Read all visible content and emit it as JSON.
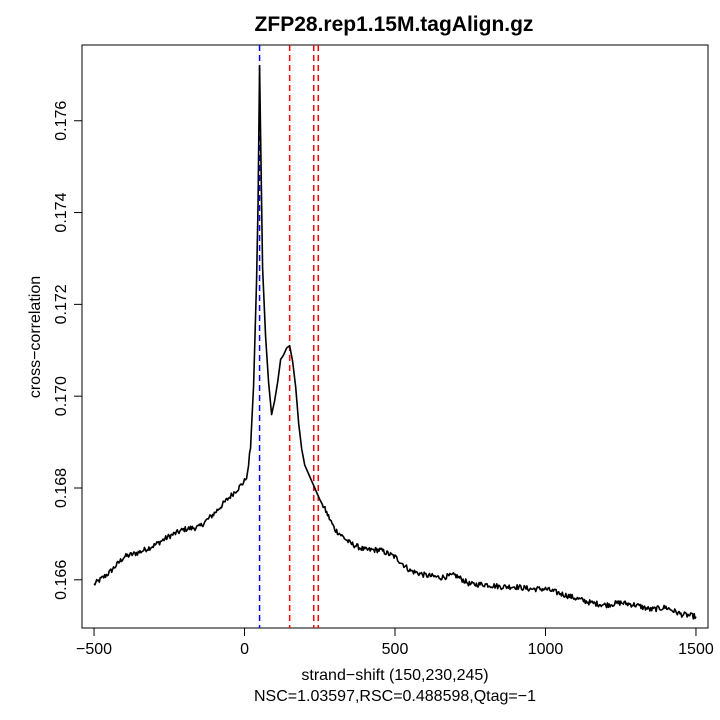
{
  "chart_data": {
    "type": "line",
    "title": "ZFP28.rep1.15M.tagAlign.gz",
    "xlabel": "strand−shift (150,230,245)",
    "subtitle": "NSC=1.03597,RSC=0.488598,Qtag=−1",
    "ylabel": "cross−correlation",
    "xlim": [
      -540,
      1540
    ],
    "ylim": [
      0.16495,
      0.17765
    ],
    "x_ticks": [
      -500,
      0,
      500,
      1000,
      1500
    ],
    "x_tick_labels": [
      "−500",
      "0",
      "500",
      "1000",
      "1500"
    ],
    "y_ticks": [
      0.166,
      0.168,
      0.17,
      0.172,
      0.174,
      0.176
    ],
    "y_tick_labels": [
      "0.166",
      "0.168",
      "0.170",
      "0.172",
      "0.174",
      "0.176"
    ],
    "series": [
      {
        "name": "cross-correlation",
        "color": "#000000",
        "x": [
          -500,
          -450,
          -400,
          -350,
          -300,
          -250,
          -200,
          -150,
          -100,
          -50,
          -20,
          0,
          10,
          20,
          30,
          40,
          45,
          50,
          55,
          60,
          70,
          80,
          90,
          100,
          110,
          120,
          130,
          140,
          150,
          160,
          170,
          180,
          190,
          200,
          210,
          220,
          230,
          240,
          250,
          270,
          300,
          350,
          400,
          450,
          500,
          550,
          600,
          650,
          700,
          750,
          800,
          850,
          900,
          950,
          1000,
          1050,
          1100,
          1150,
          1200,
          1250,
          1300,
          1350,
          1400,
          1450,
          1500
        ],
        "y": [
          0.1659,
          0.16615,
          0.1665,
          0.1666,
          0.16675,
          0.16695,
          0.1671,
          0.16715,
          0.16745,
          0.1678,
          0.168,
          0.16815,
          0.1683,
          0.1689,
          0.1702,
          0.1725,
          0.1742,
          0.1772,
          0.175,
          0.1728,
          0.1713,
          0.1703,
          0.1696,
          0.1699,
          0.1703,
          0.1708,
          0.1709,
          0.17105,
          0.1711,
          0.17075,
          0.1702,
          0.1694,
          0.16885,
          0.1685,
          0.16835,
          0.1682,
          0.16805,
          0.1679,
          0.16775,
          0.1675,
          0.1671,
          0.1668,
          0.16665,
          0.16665,
          0.1665,
          0.1662,
          0.1661,
          0.16605,
          0.1661,
          0.1659,
          0.1659,
          0.16585,
          0.16585,
          0.1658,
          0.1658,
          0.1657,
          0.1656,
          0.1655,
          0.16545,
          0.1655,
          0.16545,
          0.16535,
          0.1654,
          0.16525,
          0.1652
        ]
      }
    ],
    "vlines": [
      {
        "name": "read-length",
        "x": 50,
        "color": "#0000FF"
      },
      {
        "name": "fragment-length-1",
        "x": 150,
        "color": "#FF0000"
      },
      {
        "name": "fragment-length-2",
        "x": 230,
        "color": "#FF0000"
      },
      {
        "name": "fragment-length-3",
        "x": 245,
        "color": "#FF0000"
      }
    ],
    "grid": false,
    "legend": "none"
  }
}
